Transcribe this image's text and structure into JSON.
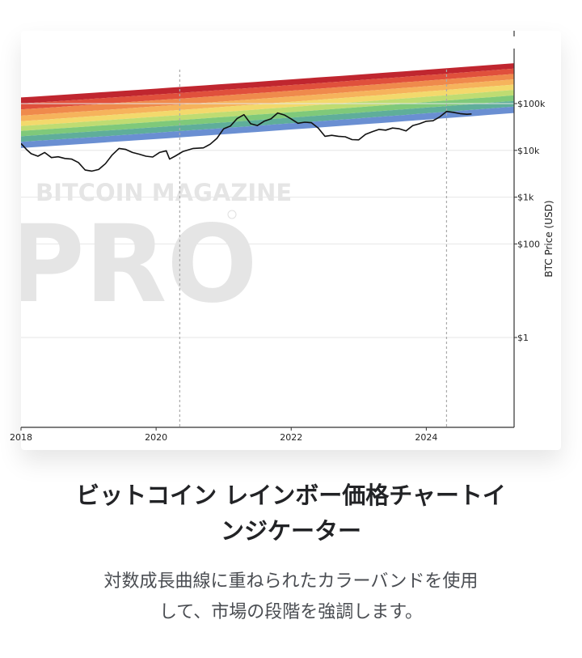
{
  "chart_data": {
    "type": "line",
    "y_scale": "log",
    "ylabel": "BTC Price (USD)",
    "x_ticks": [
      "2018",
      "2020",
      "2022",
      "2024"
    ],
    "y_ticks": [
      "$100k",
      "$10k",
      "$1k",
      "$100",
      "$1"
    ],
    "y_tick_values": [
      100000,
      10000,
      1000,
      100,
      1
    ],
    "xlim": [
      2018.0,
      2025.3
    ],
    "ylim": [
      0.012,
      1500000
    ],
    "vertical_markers": [
      2020.35,
      2024.3
    ],
    "watermark": "BITCOIN MAGAZINE PRO",
    "rainbow_bands": {
      "colors": [
        "#c0262f",
        "#e0503c",
        "#ef8a4c",
        "#f6b35c",
        "#f3d96c",
        "#bfdc72",
        "#7fc97a",
        "#5fae9a",
        "#6a8fd2"
      ],
      "boundaries_start": [
        11200,
        15200,
        20000,
        26000,
        33000,
        42000,
        55000,
        75000,
        100000,
        135000
      ],
      "boundaries_end": [
        63000,
        86000,
        114000,
        150000,
        196000,
        255000,
        330000,
        430000,
        560000,
        730000
      ]
    },
    "series": [
      {
        "x": [
          2018.0,
          2018.08,
          2018.15,
          2018.25,
          2018.35,
          2018.45,
          2018.55,
          2018.65,
          2018.75,
          2018.85,
          2018.95,
          2019.05,
          2019.15,
          2019.25,
          2019.35,
          2019.45,
          2019.55,
          2019.65,
          2019.75,
          2019.85,
          2019.95,
          2020.05,
          2020.15,
          2020.2,
          2020.28,
          2020.4,
          2020.55,
          2020.7,
          2020.8,
          2020.9,
          2021.0,
          2021.1,
          2021.2,
          2021.3,
          2021.4,
          2021.5,
          2021.6,
          2021.7,
          2021.8,
          2021.9,
          2022.0,
          2022.1,
          2022.2,
          2022.3,
          2022.4,
          2022.5,
          2022.6,
          2022.7,
          2022.8,
          2022.9,
          2023.0,
          2023.1,
          2023.2,
          2023.3,
          2023.4,
          2023.5,
          2023.6,
          2023.7,
          2023.8,
          2023.9,
          2024.0,
          2024.1,
          2024.2,
          2024.3,
          2024.4,
          2024.5,
          2024.6,
          2024.67
        ],
        "y": [
          14000,
          10500,
          8500,
          7500,
          9000,
          7000,
          7300,
          6700,
          6500,
          5500,
          3800,
          3600,
          3900,
          5200,
          8000,
          11000,
          10500,
          9000,
          8300,
          7500,
          7200,
          9000,
          9800,
          6500,
          7500,
          9500,
          11000,
          11300,
          13500,
          18000,
          29000,
          33000,
          48000,
          58000,
          37000,
          34000,
          42000,
          47000,
          63000,
          57000,
          47000,
          38000,
          40000,
          39000,
          30000,
          20000,
          21000,
          20000,
          19500,
          17000,
          16800,
          22000,
          25000,
          28000,
          27000,
          30000,
          29000,
          26000,
          34000,
          37000,
          42000,
          43000,
          52000,
          68000,
          65000,
          61000,
          59000,
          60000
        ]
      }
    ]
  },
  "caption": {
    "title_line1": "ビットコイン レインボー価格チャートイ",
    "title_line2": "ンジケーター",
    "desc_line1": "対数成長曲線に重ねられたカラーバンドを使用",
    "desc_line2": "して、市場の段階を強調します。"
  }
}
